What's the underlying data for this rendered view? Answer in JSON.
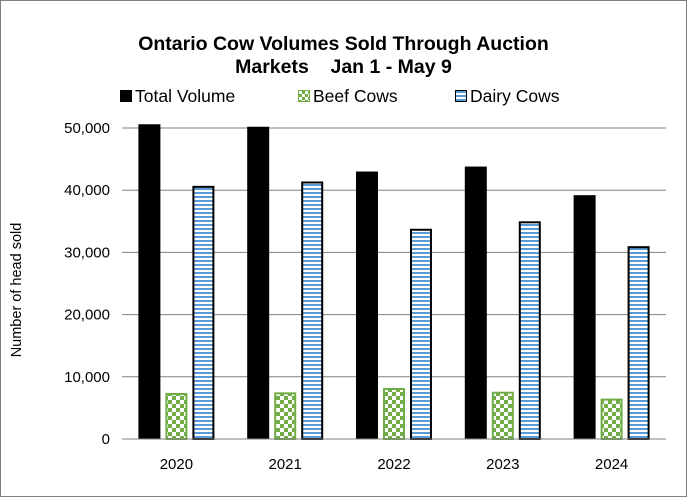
{
  "chart_data": {
    "type": "bar",
    "title": "Ontario Cow Volumes Sold Through Auction",
    "subtitle": "Markets    Jan 1 - May 9",
    "xlabel": "",
    "ylabel": "Number of head sold",
    "categories": [
      "2020",
      "2021",
      "2022",
      "2023",
      "2024"
    ],
    "ylim": [
      0,
      50000
    ],
    "yticks": [
      "0",
      "10,000",
      "20,000",
      "30,000",
      "40,000",
      "50,000"
    ],
    "ytick_values": [
      0,
      10000,
      20000,
      30000,
      40000,
      50000
    ],
    "grid": true,
    "legend_position": "top",
    "series": [
      {
        "name": "Total Volume",
        "values": [
          50600,
          50200,
          43000,
          43800,
          39200
        ],
        "color": "#000000",
        "pattern": "solid"
      },
      {
        "name": "Beef Cows",
        "values": [
          7400,
          7500,
          8200,
          7600,
          6500
        ],
        "color": "#70ad47",
        "pattern": "checker"
      },
      {
        "name": "Dairy Cows",
        "values": [
          40700,
          41400,
          33800,
          35000,
          31000
        ],
        "color": "#5b9bd5",
        "pattern": "horizontal-stripes"
      }
    ]
  }
}
